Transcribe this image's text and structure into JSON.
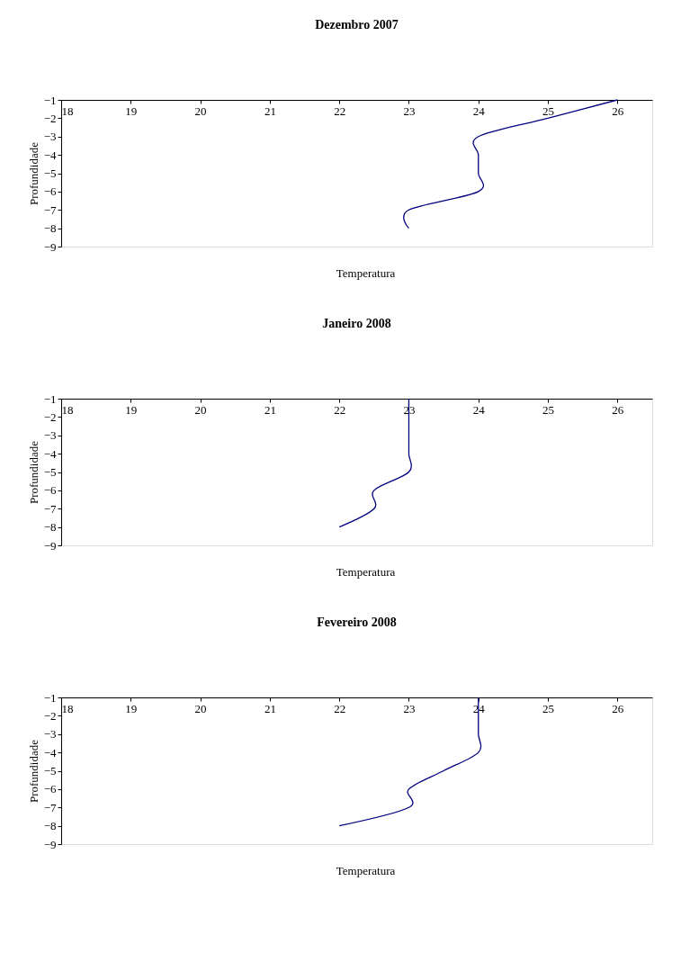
{
  "chart_data": [
    {
      "type": "line",
      "title": "Dezembro 2007",
      "xlabel": "Temperatura",
      "ylabel": "Profundidade",
      "xlim": [
        18,
        26.5
      ],
      "xticks": [
        18,
        19,
        20,
        21,
        22,
        23,
        24,
        25,
        26
      ],
      "ylim": [
        -9,
        -1
      ],
      "yticks": [
        -1,
        -2,
        -3,
        -4,
        -5,
        -6,
        -7,
        -8,
        -9
      ],
      "grid": false,
      "series": [
        {
          "color": "#000080",
          "x": [
            26,
            25,
            24,
            24,
            24,
            24,
            23,
            23
          ],
          "values": [
            -1,
            -2,
            -3,
            -4,
            -5,
            -6,
            -7,
            -8
          ]
        }
      ]
    },
    {
      "type": "line",
      "title": "Janeiro 2008",
      "xlabel": "Temperatura",
      "ylabel": "Profundidade",
      "xlim": [
        18,
        26.5
      ],
      "xticks": [
        18,
        19,
        20,
        21,
        22,
        23,
        24,
        25,
        26
      ],
      "ylim": [
        -9,
        -1
      ],
      "yticks": [
        -1,
        -2,
        -3,
        -4,
        -5,
        -6,
        -7,
        -8,
        -9
      ],
      "grid": false,
      "series": [
        {
          "color": "#000080",
          "x": [
            23,
            23,
            23,
            23,
            23,
            22.5,
            22.5,
            22
          ],
          "values": [
            -1,
            -2,
            -3,
            -4,
            -5,
            -6,
            -7,
            -8
          ]
        }
      ]
    },
    {
      "type": "line",
      "title": "Fevereiro 2008",
      "xlabel": "Temperatura",
      "ylabel": "Profundidade",
      "xlim": [
        18,
        26.5
      ],
      "xticks": [
        18,
        19,
        20,
        21,
        22,
        23,
        24,
        25,
        26
      ],
      "ylim": [
        -9,
        -1
      ],
      "yticks": [
        -1,
        -2,
        -3,
        -4,
        -5,
        -6,
        -7,
        -8,
        -9
      ],
      "grid": false,
      "series": [
        {
          "color": "#000080",
          "x": [
            24,
            24,
            24,
            24,
            23.5,
            23,
            23,
            22
          ],
          "values": [
            -1,
            -2,
            -3,
            -4,
            -5,
            -6,
            -7,
            -8
          ]
        }
      ]
    }
  ]
}
